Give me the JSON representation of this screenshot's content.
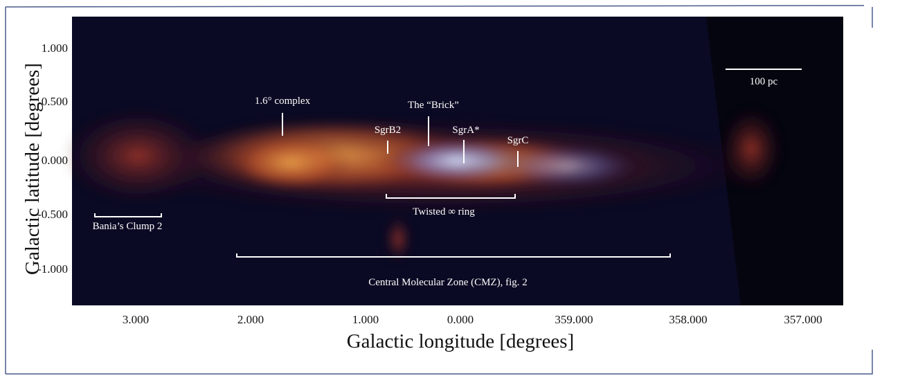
{
  "figure": {
    "x_axis": {
      "label": "Galactic longitude [degrees]",
      "ticks": [
        "3.000",
        "2.000",
        "1.000",
        "0.000",
        "359.000",
        "358.000",
        "357.000"
      ]
    },
    "y_axis": {
      "label": "Galactic latitude [degrees]",
      "ticks": [
        "1.000",
        "0.500",
        "0.000",
        "-0.500",
        "-1.000"
      ]
    },
    "annotations": [
      "1.6° complex",
      "The “Brick”",
      "SgrB2",
      "SgrA*",
      "SgrC",
      "Twisted ∞ ring",
      "Bania’s Clump 2",
      "Central Molecular Zone (CMZ), fig. 2",
      "100 pc"
    ]
  }
}
